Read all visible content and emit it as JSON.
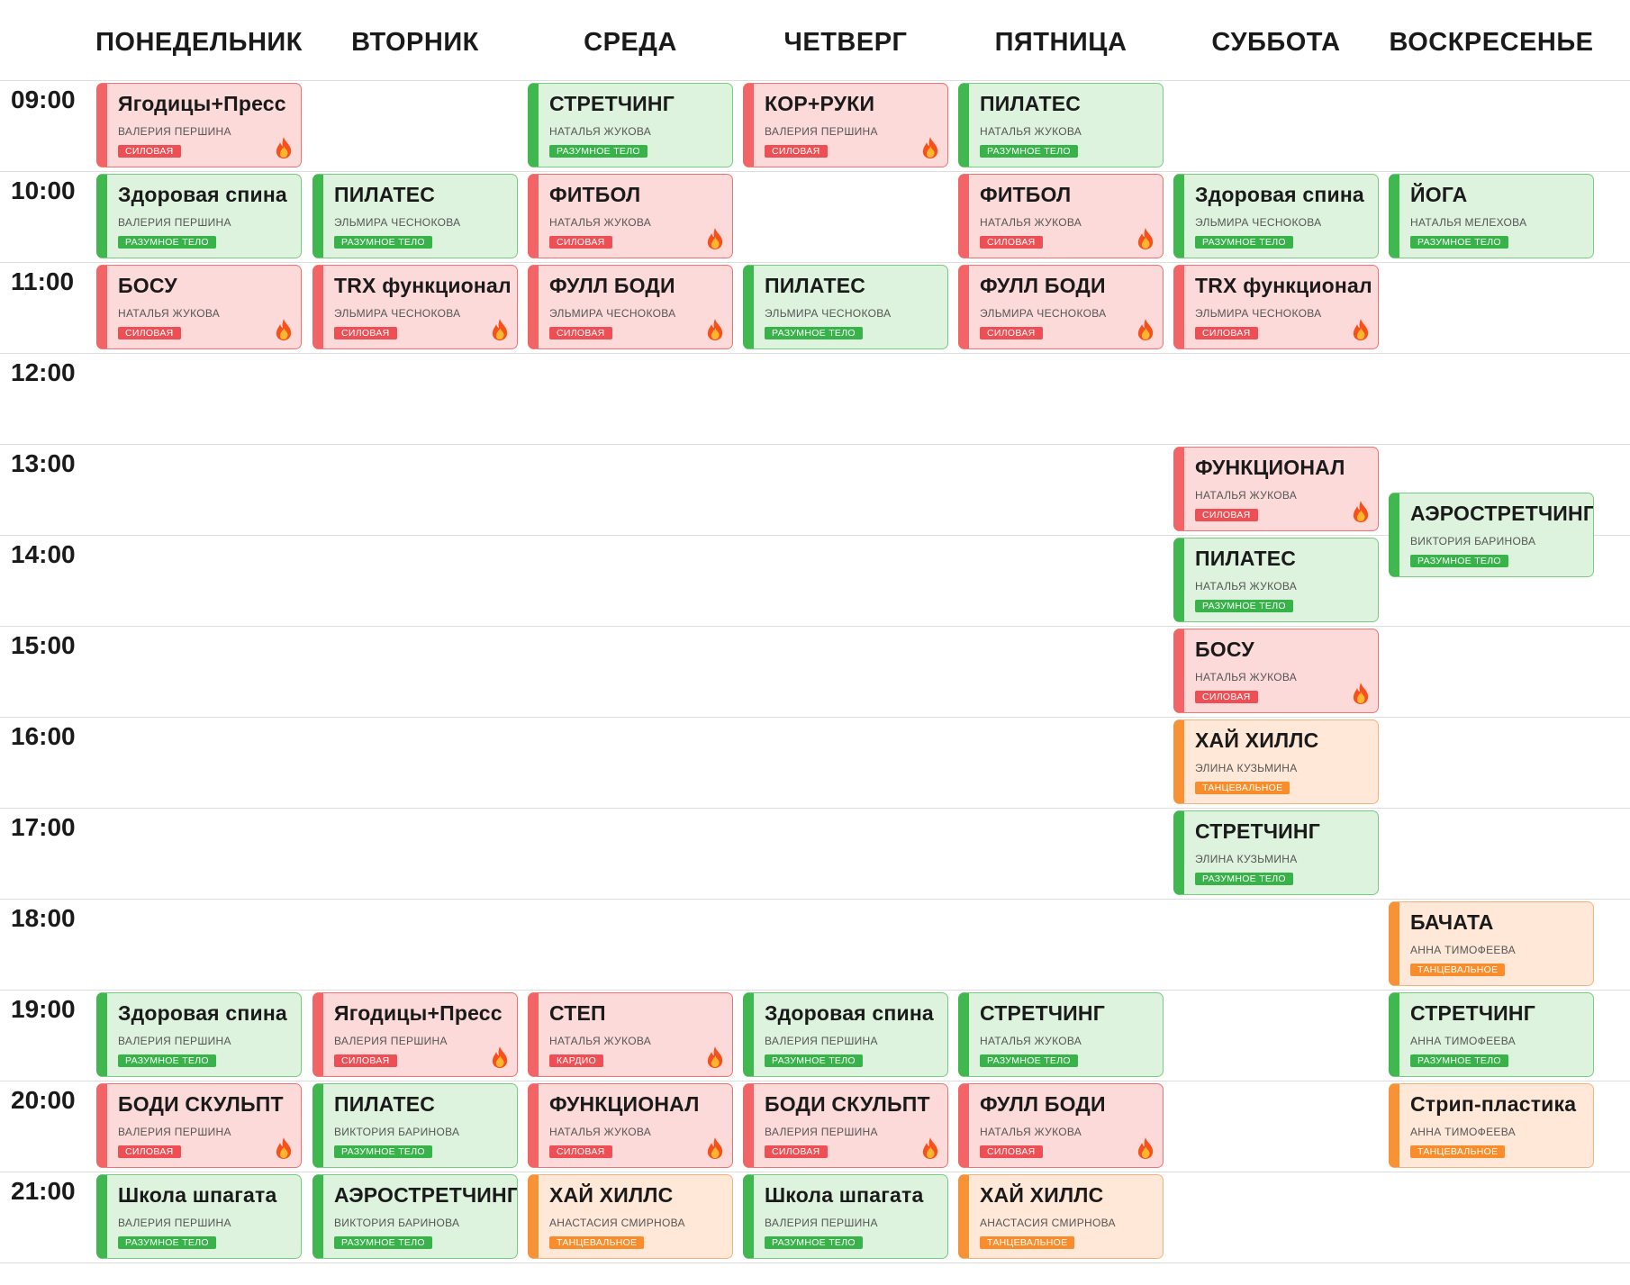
{
  "days": [
    "ПОНЕДЕЛЬНИК",
    "ВТОРНИК",
    "СРЕДА",
    "ЧЕТВЕРГ",
    "ПЯТНИЦА",
    "СУББОТА",
    "ВОСКРЕСЕНЬЕ"
  ],
  "times": [
    "09:00",
    "10:00",
    "11:00",
    "12:00",
    "13:00",
    "14:00",
    "15:00",
    "16:00",
    "17:00",
    "18:00",
    "19:00",
    "20:00",
    "21:00"
  ],
  "colors": {
    "red": "#f26465",
    "green": "#41b84f",
    "orange": "#f89236"
  },
  "classes": [
    {
      "day": 0,
      "start": "09:00",
      "name": "Ягодицы+Пресс",
      "trainer": "ВАЛЕРИЯ ПЕРШИНА",
      "tag": "СИЛОВАЯ",
      "color": "red",
      "fire": true
    },
    {
      "day": 2,
      "start": "09:00",
      "name": "СТРЕТЧИНГ",
      "trainer": "НАТАЛЬЯ ЖУКОВА",
      "tag": "РАЗУМНОЕ ТЕЛО",
      "color": "green",
      "fire": false
    },
    {
      "day": 3,
      "start": "09:00",
      "name": "КОР+РУКИ",
      "trainer": "ВАЛЕРИЯ ПЕРШИНА",
      "tag": "СИЛОВАЯ",
      "color": "red",
      "fire": true
    },
    {
      "day": 4,
      "start": "09:00",
      "name": "ПИЛАТЕС",
      "trainer": "НАТАЛЬЯ ЖУКОВА",
      "tag": "РАЗУМНОЕ ТЕЛО",
      "color": "green",
      "fire": false
    },
    {
      "day": 0,
      "start": "10:00",
      "name": "Здоровая спина",
      "trainer": "ВАЛЕРИЯ ПЕРШИНА",
      "tag": "РАЗУМНОЕ ТЕЛО",
      "color": "green",
      "fire": false
    },
    {
      "day": 1,
      "start": "10:00",
      "name": "ПИЛАТЕС",
      "trainer": "ЭЛЬМИРА ЧЕСНОКОВА",
      "tag": "РАЗУМНОЕ ТЕЛО",
      "color": "green",
      "fire": false
    },
    {
      "day": 2,
      "start": "10:00",
      "name": "ФИТБОЛ",
      "trainer": "НАТАЛЬЯ ЖУКОВА",
      "tag": "СИЛОВАЯ",
      "color": "red",
      "fire": true
    },
    {
      "day": 4,
      "start": "10:00",
      "name": "ФИТБОЛ",
      "trainer": "НАТАЛЬЯ ЖУКОВА",
      "tag": "СИЛОВАЯ",
      "color": "red",
      "fire": true
    },
    {
      "day": 5,
      "start": "10:00",
      "name": "Здоровая спина",
      "trainer": "ЭЛЬМИРА ЧЕСНОКОВА",
      "tag": "РАЗУМНОЕ ТЕЛО",
      "color": "green",
      "fire": false
    },
    {
      "day": 6,
      "start": "10:00",
      "name": "ЙОГА",
      "trainer": "НАТАЛЬЯ МЕЛЕХОВА",
      "tag": "РАЗУМНОЕ ТЕЛО",
      "color": "green",
      "fire": false
    },
    {
      "day": 0,
      "start": "11:00",
      "name": "БОСУ",
      "trainer": "НАТАЛЬЯ ЖУКОВА",
      "tag": "СИЛОВАЯ",
      "color": "red",
      "fire": true
    },
    {
      "day": 1,
      "start": "11:00",
      "name": "TRX функционал",
      "trainer": "ЭЛЬМИРА ЧЕСНОКОВА",
      "tag": "СИЛОВАЯ",
      "color": "red",
      "fire": true
    },
    {
      "day": 2,
      "start": "11:00",
      "name": "ФУЛЛ БОДИ",
      "trainer": "ЭЛЬМИРА ЧЕСНОКОВА",
      "tag": "СИЛОВАЯ",
      "color": "red",
      "fire": true
    },
    {
      "day": 3,
      "start": "11:00",
      "name": "ПИЛАТЕС",
      "trainer": "ЭЛЬМИРА ЧЕСНОКОВА",
      "tag": "РАЗУМНОЕ ТЕЛО",
      "color": "green",
      "fire": false
    },
    {
      "day": 4,
      "start": "11:00",
      "name": "ФУЛЛ БОДИ",
      "trainer": "ЭЛЬМИРА ЧЕСНОКОВА",
      "tag": "СИЛОВАЯ",
      "color": "red",
      "fire": true
    },
    {
      "day": 5,
      "start": "11:00",
      "name": "TRX функционал",
      "trainer": "ЭЛЬМИРА ЧЕСНОКОВА",
      "tag": "СИЛОВАЯ",
      "color": "red",
      "fire": true
    },
    {
      "day": 5,
      "start": "13:00",
      "name": "ФУНКЦИОНАЛ",
      "trainer": "НАТАЛЬЯ ЖУКОВА",
      "tag": "СИЛОВАЯ",
      "color": "red",
      "fire": true
    },
    {
      "day": 6,
      "start": "13:30",
      "name": "АЭРОСТРЕТЧИНГ",
      "trainer": "ВИКТОРИЯ БАРИНОВА",
      "tag": "РАЗУМНОЕ ТЕЛО",
      "color": "green",
      "fire": false
    },
    {
      "day": 5,
      "start": "14:00",
      "name": "ПИЛАТЕС",
      "trainer": "НАТАЛЬЯ ЖУКОВА",
      "tag": "РАЗУМНОЕ ТЕЛО",
      "color": "green",
      "fire": false
    },
    {
      "day": 5,
      "start": "15:00",
      "name": "БОСУ",
      "trainer": "НАТАЛЬЯ ЖУКОВА",
      "tag": "СИЛОВАЯ",
      "color": "red",
      "fire": true
    },
    {
      "day": 5,
      "start": "16:00",
      "name": "ХАЙ ХИЛЛС",
      "trainer": "ЭЛИНА КУЗЬМИНА",
      "tag": "ТАНЦЕВАЛЬНОЕ",
      "color": "orange",
      "fire": false
    },
    {
      "day": 5,
      "start": "17:00",
      "name": "СТРЕТЧИНГ",
      "trainer": "ЭЛИНА КУЗЬМИНА",
      "tag": "РАЗУМНОЕ ТЕЛО",
      "color": "green",
      "fire": false
    },
    {
      "day": 6,
      "start": "18:00",
      "name": "БАЧАТА",
      "trainer": "АННА ТИМОФЕЕВА",
      "tag": "ТАНЦЕВАЛЬНОЕ",
      "color": "orange",
      "fire": false
    },
    {
      "day": 0,
      "start": "19:00",
      "name": "Здоровая спина",
      "trainer": "ВАЛЕРИЯ ПЕРШИНА",
      "tag": "РАЗУМНОЕ ТЕЛО",
      "color": "green",
      "fire": false
    },
    {
      "day": 1,
      "start": "19:00",
      "name": "Ягодицы+Пресс",
      "trainer": "ВАЛЕРИЯ ПЕРШИНА",
      "tag": "СИЛОВАЯ",
      "color": "red",
      "fire": true
    },
    {
      "day": 2,
      "start": "19:00",
      "name": "СТЕП",
      "trainer": "НАТАЛЬЯ ЖУКОВА",
      "tag": "КАРДИО",
      "color": "red",
      "fire": true
    },
    {
      "day": 3,
      "start": "19:00",
      "name": "Здоровая спина",
      "trainer": "ВАЛЕРИЯ ПЕРШИНА",
      "tag": "РАЗУМНОЕ ТЕЛО",
      "color": "green",
      "fire": false
    },
    {
      "day": 4,
      "start": "19:00",
      "name": "СТРЕТЧИНГ",
      "trainer": "НАТАЛЬЯ ЖУКОВА",
      "tag": "РАЗУМНОЕ ТЕЛО",
      "color": "green",
      "fire": false
    },
    {
      "day": 6,
      "start": "19:00",
      "name": "СТРЕТЧИНГ",
      "trainer": "АННА ТИМОФЕЕВА",
      "tag": "РАЗУМНОЕ ТЕЛО",
      "color": "green",
      "fire": false
    },
    {
      "day": 0,
      "start": "20:00",
      "name": "БОДИ СКУЛЬПТ",
      "trainer": "ВАЛЕРИЯ ПЕРШИНА",
      "tag": "СИЛОВАЯ",
      "color": "red",
      "fire": true
    },
    {
      "day": 1,
      "start": "20:00",
      "name": "ПИЛАТЕС",
      "trainer": "ВИКТОРИЯ БАРИНОВА",
      "tag": "РАЗУМНОЕ ТЕЛО",
      "color": "green",
      "fire": false
    },
    {
      "day": 2,
      "start": "20:00",
      "name": "ФУНКЦИОНАЛ",
      "trainer": "НАТАЛЬЯ ЖУКОВА",
      "tag": "СИЛОВАЯ",
      "color": "red",
      "fire": true
    },
    {
      "day": 3,
      "start": "20:00",
      "name": "БОДИ СКУЛЬПТ",
      "trainer": "ВАЛЕРИЯ ПЕРШИНА",
      "tag": "СИЛОВАЯ",
      "color": "red",
      "fire": true
    },
    {
      "day": 4,
      "start": "20:00",
      "name": "ФУЛЛ БОДИ",
      "trainer": "НАТАЛЬЯ ЖУКОВА",
      "tag": "СИЛОВАЯ",
      "color": "red",
      "fire": true
    },
    {
      "day": 6,
      "start": "20:00",
      "name": "Стрип-пластика",
      "trainer": "АННА ТИМОФЕЕВА",
      "tag": "ТАНЦЕВАЛЬНОЕ",
      "color": "orange",
      "fire": false
    },
    {
      "day": 0,
      "start": "21:00",
      "name": "Школа шпагата",
      "trainer": "ВАЛЕРИЯ ПЕРШИНА",
      "tag": "РАЗУМНОЕ ТЕЛО",
      "color": "green",
      "fire": false
    },
    {
      "day": 1,
      "start": "21:00",
      "name": "АЭРОСТРЕТЧИНГ",
      "trainer": "ВИКТОРИЯ БАРИНОВА",
      "tag": "РАЗУМНОЕ ТЕЛО",
      "color": "green",
      "fire": false
    },
    {
      "day": 2,
      "start": "21:00",
      "name": "ХАЙ ХИЛЛС",
      "trainer": "АНАСТАСИЯ СМИРНОВА",
      "tag": "ТАНЦЕВАЛЬНОЕ",
      "color": "orange",
      "fire": false
    },
    {
      "day": 3,
      "start": "21:00",
      "name": "Школа шпагата",
      "trainer": "ВАЛЕРИЯ ПЕРШИНА",
      "tag": "РАЗУМНОЕ ТЕЛО",
      "color": "green",
      "fire": false
    },
    {
      "day": 4,
      "start": "21:00",
      "name": "ХАЙ ХИЛЛС",
      "trainer": "АНАСТАСИЯ СМИРНОВА",
      "tag": "ТАНЦЕВАЛЬНОЕ",
      "color": "orange",
      "fire": false
    }
  ]
}
